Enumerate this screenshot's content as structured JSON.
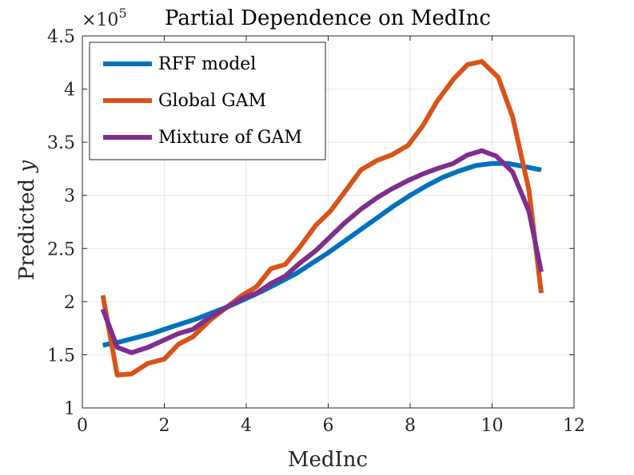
{
  "chart_data": {
    "type": "line",
    "title": "Partial Dependence on MedInc",
    "xlabel": "MedInc",
    "ylabel_text": "Predicted ",
    "ylabel_var": "y",
    "y_multiplier_base": "×10",
    "y_multiplier_exp": "5",
    "xlim": [
      0,
      12
    ],
    "ylim": [
      1,
      4.5
    ],
    "x_ticks": [
      0,
      2,
      4,
      6,
      8,
      10,
      12
    ],
    "x_tick_labels": [
      "0",
      "2",
      "4",
      "6",
      "8",
      "10",
      "12"
    ],
    "y_ticks": [
      1,
      1.5,
      2,
      2.5,
      3,
      3.5,
      4,
      4.5
    ],
    "y_tick_labels": [
      "1",
      "1.5",
      "2",
      "2.5",
      "3",
      "3.5",
      "4",
      "4.5"
    ],
    "grid": true,
    "legend_position": "top-left",
    "series": [
      {
        "name": "RFF model",
        "color": "#0072BD",
        "x": [
          0.5,
          0.9,
          1.3,
          1.7,
          2.0,
          2.4,
          2.8,
          3.2,
          3.6,
          4.0,
          4.4,
          4.8,
          5.2,
          5.6,
          6.0,
          6.4,
          6.8,
          7.2,
          7.6,
          8.0,
          8.4,
          8.8,
          9.2,
          9.6,
          10.0,
          10.4,
          10.8,
          11.2
        ],
        "values": [
          1.59,
          1.62,
          1.66,
          1.7,
          1.74,
          1.79,
          1.84,
          1.9,
          1.96,
          2.03,
          2.1,
          2.18,
          2.26,
          2.36,
          2.46,
          2.57,
          2.68,
          2.79,
          2.9,
          3.0,
          3.09,
          3.17,
          3.23,
          3.28,
          3.3,
          3.3,
          3.27,
          3.24
        ]
      },
      {
        "name": "Global GAM",
        "color": "#D95319",
        "x": [
          0.5,
          0.85,
          1.2,
          1.6,
          2.0,
          2.35,
          2.7,
          3.1,
          3.5,
          3.9,
          4.25,
          4.6,
          4.95,
          5.3,
          5.7,
          6.05,
          6.4,
          6.8,
          7.2,
          7.55,
          7.95,
          8.3,
          8.65,
          9.05,
          9.4,
          9.75,
          10.15,
          10.5,
          10.9,
          11.2
        ],
        "values": [
          2.06,
          1.31,
          1.32,
          1.42,
          1.46,
          1.6,
          1.67,
          1.82,
          1.94,
          2.06,
          2.14,
          2.31,
          2.35,
          2.51,
          2.72,
          2.85,
          3.03,
          3.24,
          3.33,
          3.38,
          3.47,
          3.65,
          3.88,
          4.09,
          4.23,
          4.26,
          4.11,
          3.74,
          3.05,
          2.08
        ]
      },
      {
        "name": "Mixture of GAM",
        "color": "#7E2F8E",
        "x": [
          0.5,
          0.85,
          1.2,
          1.6,
          2.0,
          2.35,
          2.7,
          3.1,
          3.5,
          3.9,
          4.25,
          4.6,
          4.95,
          5.3,
          5.7,
          6.05,
          6.4,
          6.8,
          7.2,
          7.55,
          7.95,
          8.3,
          8.65,
          9.05,
          9.4,
          9.75,
          10.1,
          10.5,
          10.9,
          11.2
        ],
        "values": [
          1.93,
          1.57,
          1.52,
          1.57,
          1.64,
          1.7,
          1.74,
          1.85,
          1.94,
          2.03,
          2.08,
          2.17,
          2.24,
          2.36,
          2.48,
          2.61,
          2.74,
          2.87,
          2.98,
          3.06,
          3.14,
          3.2,
          3.25,
          3.3,
          3.38,
          3.42,
          3.37,
          3.22,
          2.85,
          2.28
        ]
      }
    ]
  }
}
